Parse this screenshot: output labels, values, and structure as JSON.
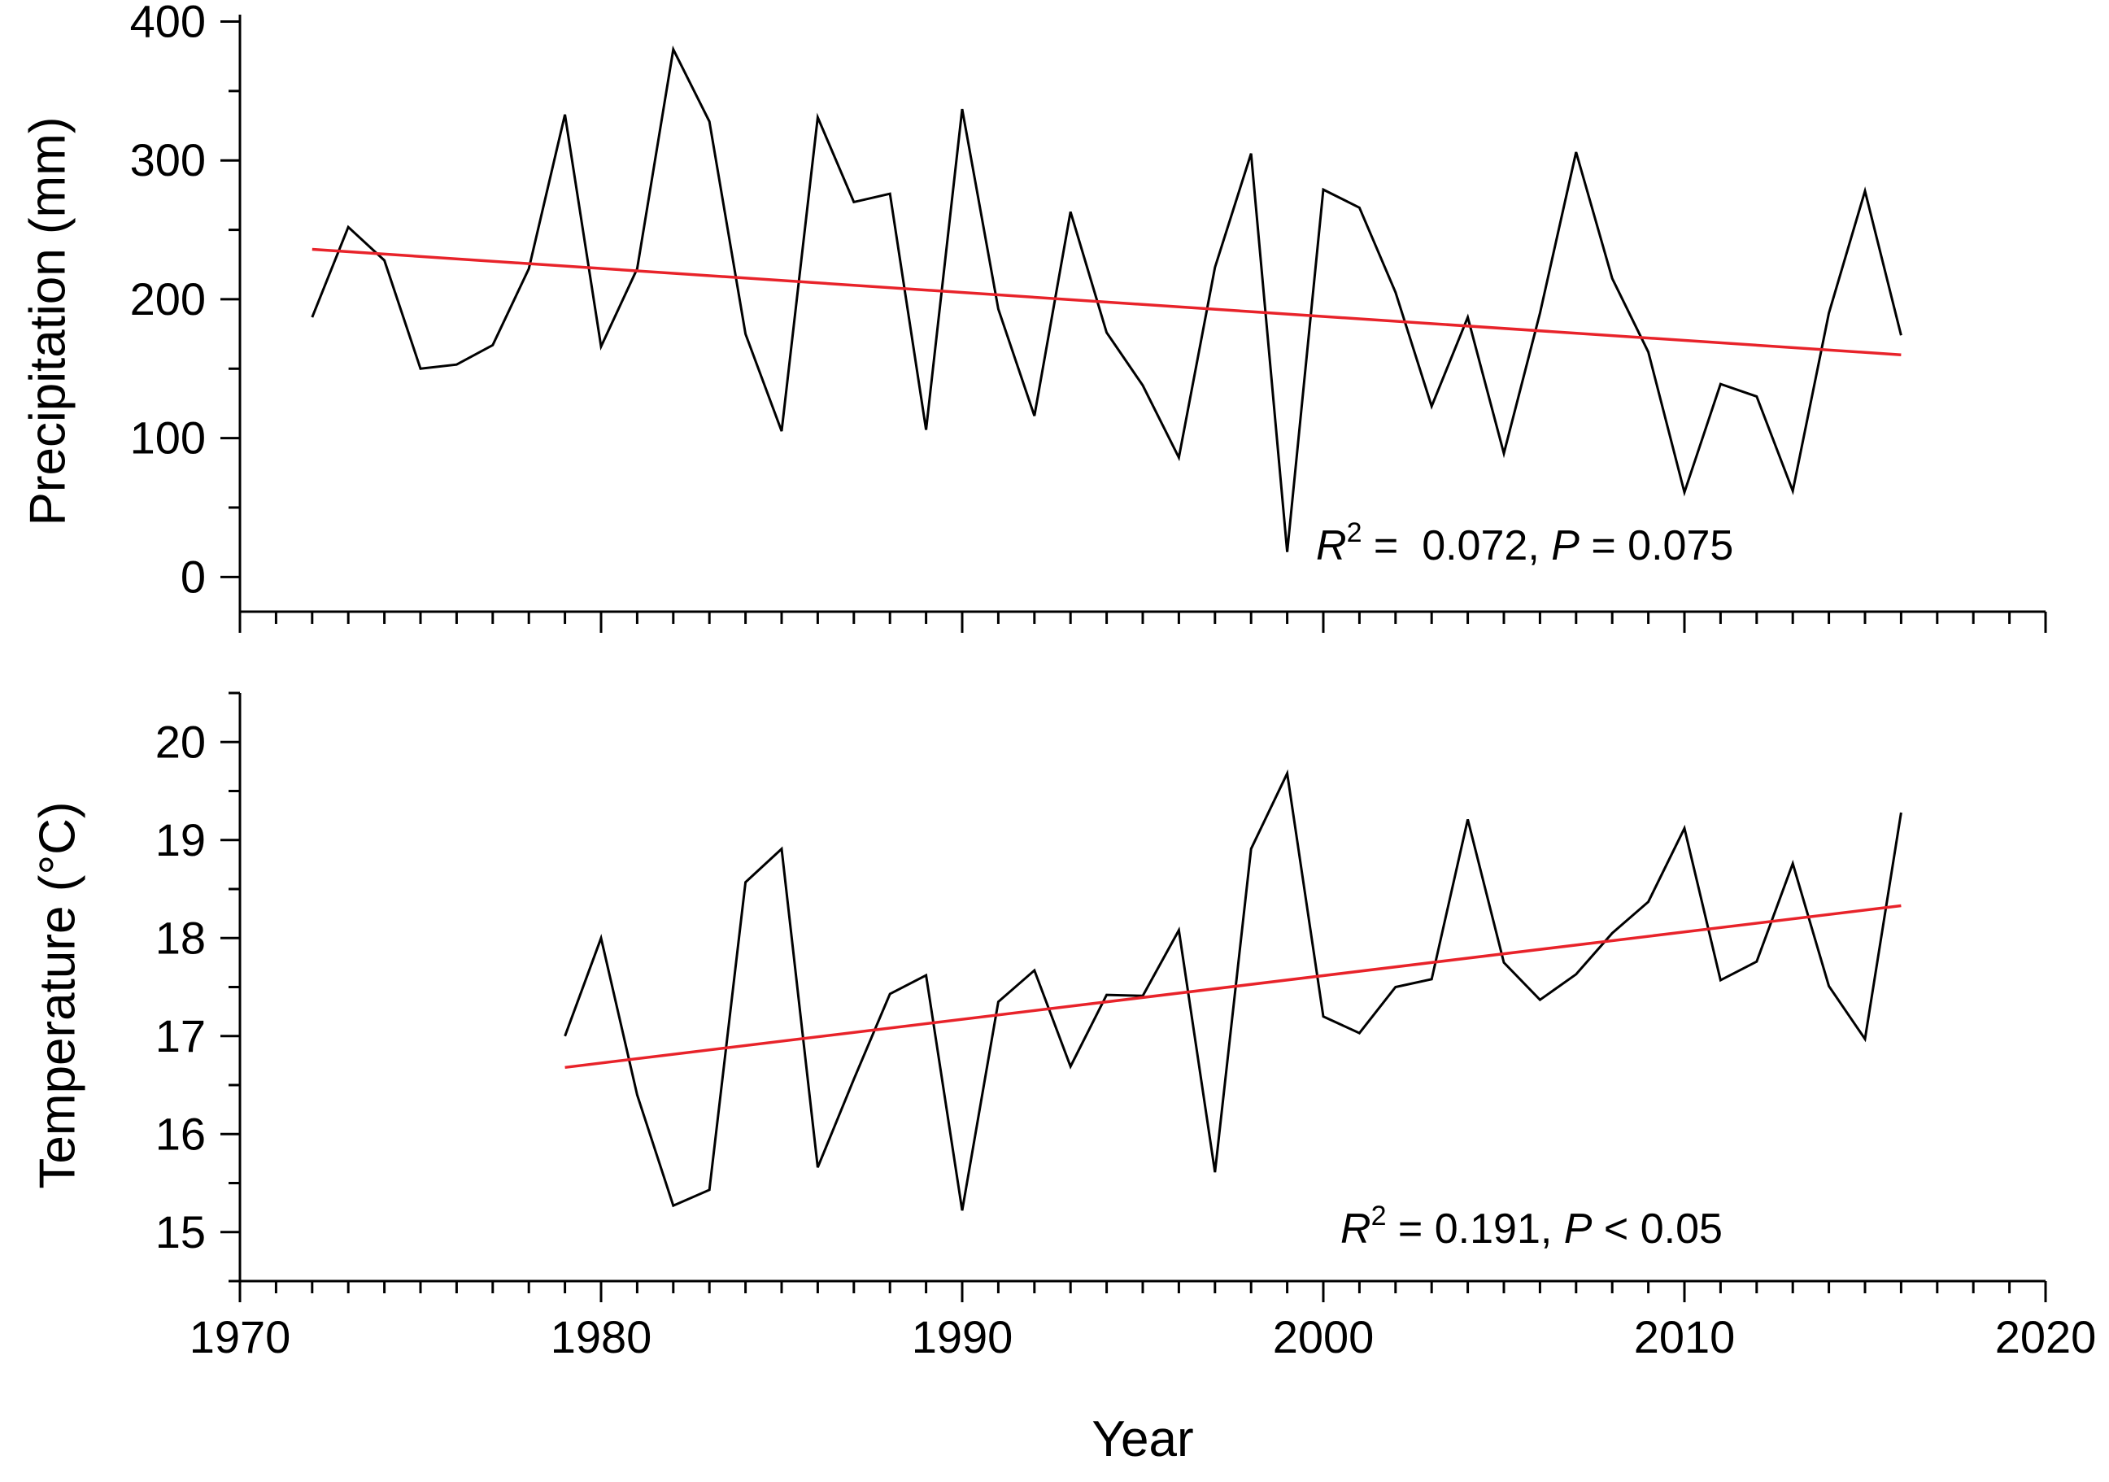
{
  "chart_data": [
    {
      "type": "line",
      "panel": "top",
      "title": "",
      "xlabel": "",
      "ylabel": "Precipitation (mm)",
      "xlim": [
        1970,
        2020
      ],
      "ylim": [
        -25,
        405
      ],
      "yticks": [
        0,
        100,
        200,
        300,
        400
      ],
      "grid": false,
      "series": [
        {
          "name": "Precipitation",
          "color": "#000000",
          "x": [
            1972,
            1973,
            1974,
            1975,
            1976,
            1977,
            1978,
            1979,
            1980,
            1981,
            1982,
            1983,
            1984,
            1985,
            1986,
            1987,
            1988,
            1989,
            1990,
            1991,
            1992,
            1993,
            1994,
            1995,
            1996,
            1997,
            1998,
            1999,
            2000,
            2001,
            2002,
            2003,
            2004,
            2005,
            2006,
            2007,
            2008,
            2009,
            2010,
            2011,
            2012,
            2013,
            2014,
            2015,
            2016
          ],
          "values": [
            187,
            252,
            228,
            150,
            153,
            167,
            222,
            333,
            166,
            222,
            380,
            328,
            175,
            105,
            331,
            270,
            276,
            106,
            337,
            193,
            116,
            263,
            176,
            138,
            86,
            223,
            305,
            18,
            279,
            266,
            205,
            123,
            187,
            89,
            190,
            306,
            215,
            162,
            61,
            139,
            130,
            62,
            190,
            278,
            174
          ]
        },
        {
          "name": "Linear fit",
          "color": "#e8232a",
          "x": [
            1972,
            2016
          ],
          "values": [
            236,
            160
          ]
        }
      ],
      "annotation": {
        "symbol": "R",
        "superscript": "2",
        "text": " =  0.072, ",
        "p_symbol": "P",
        "p_text": " = 0.075"
      }
    },
    {
      "type": "line",
      "panel": "bottom",
      "title": "",
      "xlabel": "Year",
      "ylabel": "Temperature (°C)",
      "xlim": [
        1970,
        2020
      ],
      "ylim": [
        14.5,
        20.5
      ],
      "yticks": [
        15,
        16,
        17,
        18,
        19,
        20
      ],
      "xticks": [
        1970,
        1980,
        1990,
        2000,
        2010,
        2020
      ],
      "grid": false,
      "series": [
        {
          "name": "Temperature",
          "color": "#000000",
          "x": [
            1979,
            1980,
            1981,
            1982,
            1983,
            1984,
            1985,
            1986,
            1987,
            1988,
            1989,
            1990,
            1991,
            1992,
            1993,
            1994,
            1995,
            1996,
            1997,
            1998,
            1999,
            2000,
            2001,
            2002,
            2003,
            2004,
            2005,
            2006,
            2007,
            2008,
            2009,
            2010,
            2011,
            2012,
            2013,
            2014,
            2015,
            2016
          ],
          "values": [
            17.0,
            18.0,
            16.4,
            15.27,
            15.43,
            18.57,
            18.91,
            15.66,
            16.56,
            17.43,
            17.62,
            15.22,
            17.35,
            17.67,
            16.69,
            17.42,
            17.41,
            18.08,
            15.61,
            18.91,
            19.68,
            17.2,
            17.03,
            17.5,
            17.58,
            19.21,
            17.75,
            17.37,
            17.63,
            18.05,
            18.37,
            19.12,
            17.57,
            17.76,
            18.76,
            17.51,
            16.97,
            19.28
          ]
        },
        {
          "name": "Linear fit",
          "color": "#e8232a",
          "x": [
            1979,
            2016
          ],
          "values": [
            16.68,
            18.33
          ]
        }
      ],
      "annotation": {
        "symbol": "R",
        "superscript": "2",
        "text": " = 0.191, ",
        "p_symbol": "P",
        "p_text": " < 0.05"
      }
    }
  ]
}
